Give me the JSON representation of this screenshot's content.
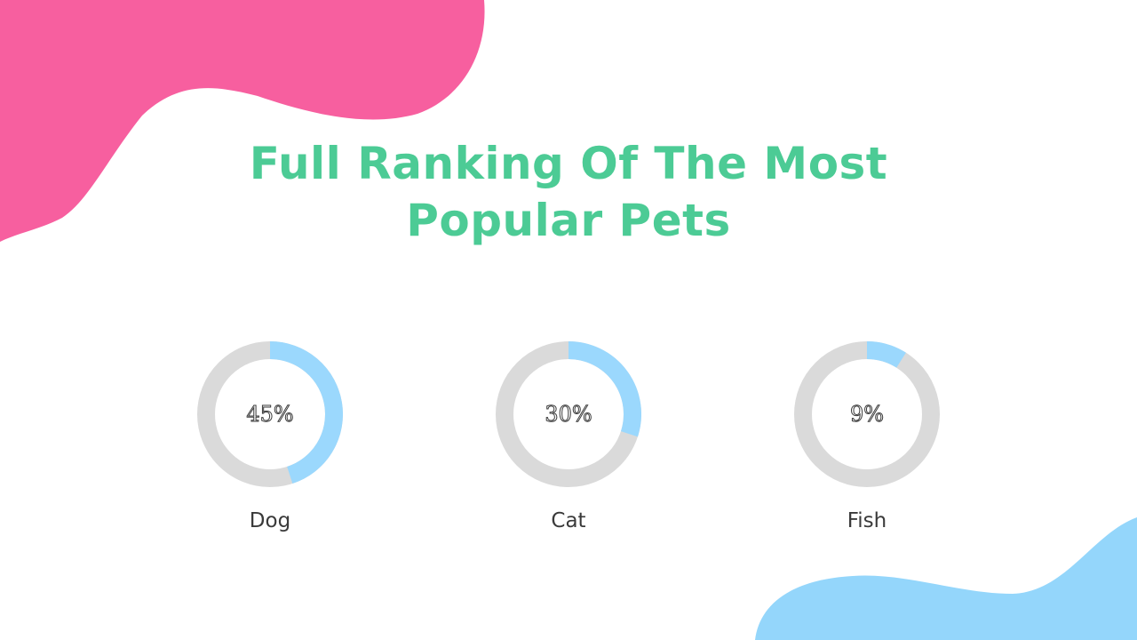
{
  "slide": {
    "title_line1": "Full Ranking Of The Most",
    "title_line2": "Popular Pets"
  },
  "colors": {
    "title": "#4ccb95",
    "blob_pink": "#f75f9f",
    "blob_blue": "#94d6fb",
    "donut_fill": "#9bd8fd",
    "donut_track": "#dadada"
  },
  "chart_data": [
    {
      "type": "pie",
      "variant": "donut",
      "label": "Dog",
      "value": 45,
      "value_label": "45%"
    },
    {
      "type": "pie",
      "variant": "donut",
      "label": "Cat",
      "value": 30,
      "value_label": "30%"
    },
    {
      "type": "pie",
      "variant": "donut",
      "label": "Fish",
      "value": 9,
      "value_label": "9%"
    }
  ]
}
